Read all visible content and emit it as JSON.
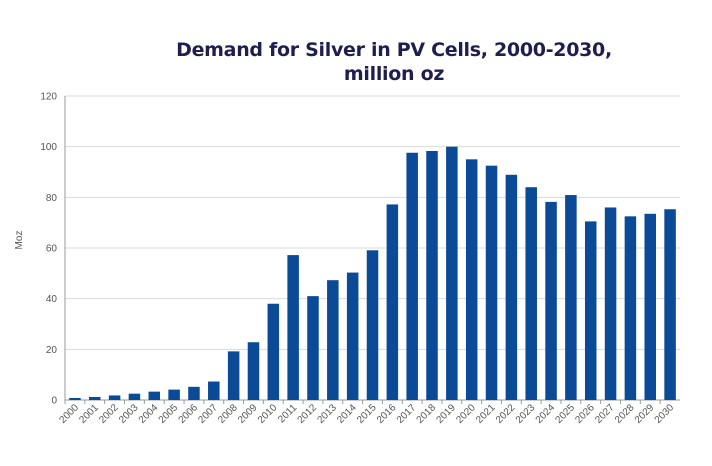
{
  "chart_data": {
    "type": "bar",
    "title_line1": "Demand for Silver in PV Cells, 2000-2030,",
    "title_line2": "million oz",
    "xlabel": "",
    "ylabel": "Moz",
    "ylim": [
      0,
      120
    ],
    "yticks": [
      0,
      20,
      40,
      60,
      80,
      100,
      120
    ],
    "grid": true,
    "bar_color": "#0b4a96",
    "categories": [
      "2000",
      "2001",
      "2002",
      "2003",
      "2004",
      "2005",
      "2006",
      "2007",
      "2008",
      "2009",
      "2010",
      "2011",
      "2012",
      "2013",
      "2014",
      "2015",
      "2016",
      "2017",
      "2018",
      "2019",
      "2020",
      "2021",
      "2022",
      "2023",
      "2024",
      "2025",
      "2026",
      "2027",
      "2028",
      "2029",
      "2030"
    ],
    "values": [
      0.8,
      1.2,
      1.8,
      2.5,
      3.3,
      4.1,
      5.2,
      7.3,
      19.2,
      22.8,
      38.0,
      57.2,
      41.0,
      47.3,
      50.3,
      59.1,
      77.2,
      97.6,
      98.3,
      100.0,
      95.0,
      92.5,
      88.9,
      84.0,
      78.2,
      80.9,
      70.5,
      76.0,
      72.5,
      73.5,
      75.3
    ]
  }
}
